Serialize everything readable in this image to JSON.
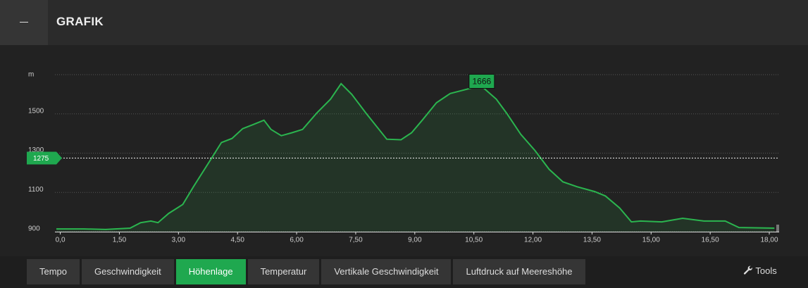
{
  "header": {
    "title": "GRAFIK"
  },
  "chart_data": {
    "type": "area",
    "color": "#2bb54f",
    "grid": true,
    "xlim": [
      -0.1,
      18.25
    ],
    "xticks": [
      {
        "value": 0,
        "label": "0,0"
      },
      {
        "value": 1.5,
        "label": "1,50"
      },
      {
        "value": 3,
        "label": "3,00"
      },
      {
        "value": 4.5,
        "label": "4,50"
      },
      {
        "value": 6,
        "label": "6,00"
      },
      {
        "value": 7.5,
        "label": "7,50"
      },
      {
        "value": 9,
        "label": "9,00"
      },
      {
        "value": 10.5,
        "label": "10,50"
      },
      {
        "value": 12,
        "label": "12,00"
      },
      {
        "value": 13.5,
        "label": "13,50"
      },
      {
        "value": 15,
        "label": "15,00"
      },
      {
        "value": 16.5,
        "label": "16,50"
      },
      {
        "value": 18,
        "label": "18,00"
      }
    ],
    "ylim": [
      900,
      1700
    ],
    "yticks": [
      900,
      1100,
      1300,
      1500,
      {
        "value": 1700,
        "label": "m"
      }
    ],
    "x": [
      -0.1,
      0.6,
      1.15,
      1.77,
      2.04,
      2.3,
      2.48,
      2.75,
      3.11,
      3.38,
      3.83,
      4.09,
      4.36,
      4.63,
      4.9,
      5.17,
      5.35,
      5.61,
      5.88,
      6.15,
      6.51,
      6.86,
      7.13,
      7.4,
      7.76,
      8.29,
      8.65,
      8.92,
      9.19,
      9.55,
      9.9,
      10.44,
      10.7,
      11.07,
      11.33,
      11.69,
      12.05,
      12.41,
      12.76,
      13.12,
      13.57,
      13.84,
      14.2,
      14.5,
      14.73,
      15.27,
      15.8,
      16.34,
      16.88,
      17.23,
      18.13
    ],
    "values": [
      914,
      914,
      911,
      918,
      946,
      954,
      946,
      993,
      1039,
      1129,
      1271,
      1354,
      1375,
      1425,
      1446,
      1468,
      1421,
      1389,
      1404,
      1421,
      1504,
      1575,
      1654,
      1600,
      1504,
      1371,
      1368,
      1404,
      1468,
      1557,
      1604,
      1632,
      1640,
      1575,
      1504,
      1396,
      1314,
      1218,
      1154,
      1129,
      1104,
      1082,
      1021,
      950,
      954,
      950,
      968,
      954,
      954,
      921,
      918
    ],
    "reference_line": {
      "value": 1275
    },
    "peak": {
      "x": 10.7,
      "value": 1666
    }
  },
  "tabs": [
    "Tempo",
    "Geschwindigkeit",
    "Höhenlage",
    "Temperatur",
    "Vertikale Geschwindigkeit",
    "Luftdruck auf Meereshöhe"
  ],
  "active_tab": 2,
  "tools": "Tools"
}
